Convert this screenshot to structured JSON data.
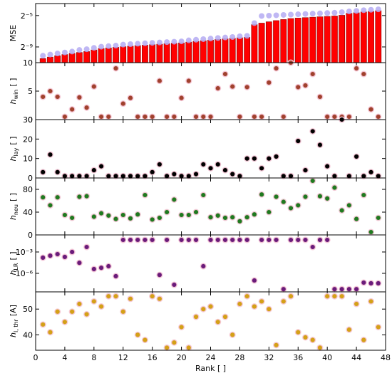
{
  "chart_data": [
    {
      "type": "bar",
      "ylabel": "MSE",
      "log_y": true,
      "x": [
        1,
        2,
        3,
        4,
        5,
        6,
        7,
        8,
        9,
        10,
        11,
        12,
        13,
        14,
        15,
        16,
        17,
        18,
        19,
        20,
        21,
        22,
        23,
        24,
        25,
        26,
        27,
        28,
        29,
        30,
        31,
        32,
        33,
        34,
        35,
        36,
        37,
        38,
        39,
        40,
        41,
        42,
        43,
        44,
        45,
        46,
        47
      ],
      "xlim": [
        0,
        48
      ],
      "xticks": [
        0,
        4,
        8,
        12,
        16,
        20,
        24,
        28,
        32,
        36,
        40,
        44,
        48
      ],
      "ylim": [
        0.00048828125,
        0.09
      ],
      "yticks": [
        {
          "value": 0.001953125,
          "label": "2⁻⁹"
        },
        {
          "value": 0.03125,
          "label": "2⁻⁵"
        }
      ],
      "series": [
        {
          "color": "#ff0000",
          "values": [
            0.0007,
            0.0008,
            0.0009,
            0.001,
            0.0011,
            0.0012,
            0.0013,
            0.0015,
            0.0017,
            0.0018,
            0.0019,
            0.002,
            0.0021,
            0.0022,
            0.0023,
            0.0024,
            0.0025,
            0.0026,
            0.0027,
            0.0028,
            0.003,
            0.0032,
            0.0034,
            0.0036,
            0.0038,
            0.004,
            0.0042,
            0.0044,
            0.0046,
            0.014,
            0.016,
            0.018,
            0.02,
            0.022,
            0.024,
            0.025,
            0.026,
            0.027,
            0.028,
            0.029,
            0.03,
            0.032,
            0.038,
            0.04,
            0.043,
            0.045,
            0.048
          ]
        },
        {
          "color": "#b4aaf2",
          "marker": "circle",
          "values": [
            0.0009,
            0.001,
            0.0011,
            0.0012,
            0.0013,
            0.0015,
            0.0016,
            0.0018,
            0.002,
            0.0021,
            0.0022,
            0.0024,
            0.0025,
            0.0026,
            0.0027,
            0.0028,
            0.0029,
            0.003,
            0.0031,
            0.0032,
            0.0035,
            0.0037,
            0.0039,
            0.0041,
            0.0043,
            0.0045,
            0.0047,
            0.005,
            0.0052,
            0.016,
            0.03,
            0.031,
            0.032,
            0.033,
            0.034,
            0.035,
            0.036,
            0.037,
            0.038,
            0.039,
            0.04,
            0.042,
            0.045,
            0.047,
            0.05,
            0.052,
            0.054
          ]
        }
      ]
    },
    {
      "type": "scatter",
      "ylabel": "h",
      "ylabel_sub": "win",
      "ylabel_unit": "[ ]",
      "color": "#a0412d",
      "x": [
        1,
        2,
        3,
        4,
        5,
        6,
        7,
        8,
        9,
        10,
        11,
        12,
        13,
        14,
        15,
        16,
        17,
        18,
        19,
        20,
        21,
        22,
        23,
        24,
        25,
        26,
        27,
        28,
        29,
        30,
        31,
        32,
        33,
        34,
        35,
        36,
        37,
        38,
        39,
        40,
        41,
        42,
        43,
        44,
        45,
        46,
        47
      ],
      "xlim": [
        0,
        48
      ],
      "xticks": [
        0,
        4,
        8,
        12,
        16,
        20,
        24,
        28,
        32,
        36,
        40,
        44,
        48
      ],
      "ylim": [
        0,
        10
      ],
      "yticks": [
        0,
        5,
        10
      ],
      "values": [
        4,
        5,
        4,
        0.5,
        1.8,
        3.9,
        2.1,
        5.8,
        0.5,
        0.5,
        9,
        2.8,
        3.8,
        0.5,
        0.5,
        0.5,
        6.8,
        0.5,
        0.5,
        3.8,
        6.8,
        0.5,
        0.5,
        0.5,
        5.5,
        8,
        5.8,
        0.5,
        5.7,
        0.5,
        0.5,
        6.5,
        9,
        0.5,
        10,
        5.7,
        6,
        8,
        4,
        0.5,
        0.5,
        0.5,
        0.5,
        9,
        8,
        1.8,
        0.5
      ]
    },
    {
      "type": "scatter",
      "ylabel": "h",
      "ylabel_sub": "lay",
      "ylabel_unit": "[ ]",
      "color": "#000000",
      "x": [
        1,
        2,
        3,
        4,
        5,
        6,
        7,
        8,
        9,
        10,
        11,
        12,
        13,
        14,
        15,
        16,
        17,
        18,
        19,
        20,
        21,
        22,
        23,
        24,
        25,
        26,
        27,
        28,
        29,
        30,
        31,
        32,
        33,
        34,
        35,
        36,
        37,
        38,
        39,
        40,
        41,
        42,
        43,
        44,
        45,
        46,
        47
      ],
      "xlim": [
        0,
        48
      ],
      "xticks": [
        0,
        4,
        8,
        12,
        16,
        20,
        24,
        28,
        32,
        36,
        40,
        44,
        48
      ],
      "ylim": [
        0,
        30
      ],
      "yticks": [
        0,
        10,
        20,
        30
      ],
      "values": [
        3,
        12,
        3,
        1,
        1,
        1,
        1,
        4,
        6,
        1,
        1,
        1,
        1,
        1,
        1,
        3,
        7,
        1,
        2,
        1,
        1,
        2,
        7,
        5,
        7,
        4,
        2,
        1,
        10,
        10,
        5,
        10,
        11,
        1,
        1,
        19,
        4,
        24,
        17,
        6,
        1,
        30,
        1,
        11,
        1,
        3,
        1
      ]
    },
    {
      "type": "scatter",
      "ylabel": "h",
      "ylabel_sub": "neu",
      "ylabel_unit": "[ ]",
      "color": "#1f7a1f",
      "x": [
        1,
        2,
        3,
        4,
        5,
        6,
        7,
        8,
        9,
        10,
        11,
        12,
        13,
        14,
        15,
        16,
        17,
        18,
        19,
        20,
        21,
        22,
        23,
        24,
        25,
        26,
        27,
        28,
        29,
        30,
        31,
        32,
        33,
        34,
        35,
        36,
        37,
        38,
        39,
        40,
        41,
        42,
        43,
        44,
        45,
        46,
        47
      ],
      "xlim": [
        0,
        48
      ],
      "xticks": [
        0,
        4,
        8,
        12,
        16,
        20,
        24,
        28,
        32,
        36,
        40,
        44,
        48
      ],
      "ylim": [
        0,
        100
      ],
      "yticks": [
        0,
        40,
        80
      ],
      "values": [
        66,
        52,
        66,
        35,
        30,
        67,
        68,
        32,
        38,
        34,
        28,
        35,
        29,
        36,
        70,
        27,
        30,
        40,
        62,
        35,
        35,
        40,
        70,
        31,
        34,
        30,
        31,
        24,
        31,
        36,
        71,
        40,
        67,
        58,
        47,
        52,
        67,
        95,
        68,
        64,
        83,
        43,
        52,
        28,
        70,
        5,
        30
      ]
    },
    {
      "type": "scatter",
      "ylabel": "h",
      "ylabel_sub": "LR",
      "ylabel_unit": "[ ]",
      "color": "#6a1b7a",
      "log_y": true,
      "x": [
        1,
        2,
        3,
        4,
        5,
        6,
        7,
        8,
        9,
        10,
        11,
        12,
        13,
        14,
        15,
        16,
        17,
        18,
        19,
        20,
        21,
        22,
        23,
        24,
        25,
        26,
        27,
        28,
        29,
        30,
        31,
        32,
        33,
        34,
        35,
        36,
        37,
        38,
        39,
        40,
        41,
        42,
        43,
        44,
        45,
        46,
        47
      ],
      "xlim": [
        0,
        48
      ],
      "xticks": [
        0,
        4,
        8,
        12,
        16,
        20,
        24,
        28,
        32,
        36,
        40,
        44,
        48
      ],
      "ylim": [
        2.5e-09,
        0.25
      ],
      "yticks": [
        {
          "value": 1e-06,
          "label": "10⁻⁶"
        },
        {
          "value": 0.001,
          "label": "10⁻³"
        }
      ],
      "values": [
        0.00016,
        0.0003,
        0.0005,
        0.0002,
        0.001,
        3e-05,
        0.005,
        4e-06,
        6e-06,
        1e-05,
        4e-07,
        0.05,
        0.05,
        0.05,
        0.05,
        0.05,
        6e-07,
        0.05,
        2.5e-08,
        0.05,
        0.05,
        0.05,
        1e-05,
        0.05,
        0.05,
        0.05,
        0.05,
        0.05,
        0.05,
        1e-07,
        0.05,
        0.05,
        0.05,
        6e-09,
        0.05,
        0.05,
        0.05,
        0.005,
        0.05,
        0.05,
        6e-09,
        6e-09,
        6e-09,
        6e-09,
        5e-08,
        4e-08,
        4e-08
      ]
    },
    {
      "type": "scatter",
      "ylabel": "h",
      "ylabel_sub": "l, thr",
      "ylabel_unit": "[A]",
      "color": "#d4a017",
      "xlabel": "Rank [ ]",
      "x": [
        1,
        2,
        3,
        4,
        5,
        6,
        7,
        8,
        9,
        10,
        11,
        12,
        13,
        14,
        15,
        16,
        17,
        18,
        19,
        20,
        21,
        22,
        23,
        24,
        25,
        26,
        27,
        28,
        29,
        30,
        31,
        32,
        33,
        34,
        35,
        36,
        37,
        38,
        39,
        40,
        41,
        42,
        43,
        44,
        45,
        46,
        47
      ],
      "xlim": [
        0,
        48
      ],
      "xticks": [
        0,
        4,
        8,
        12,
        16,
        20,
        24,
        28,
        32,
        36,
        40,
        44,
        48
      ],
      "ylim": [
        34,
        56.7
      ],
      "yticks": [
        40,
        50
      ],
      "values": [
        44,
        41,
        49,
        45,
        49,
        52,
        48,
        53,
        51,
        55,
        55,
        49,
        54,
        40,
        38,
        55,
        54,
        35,
        37,
        43,
        35,
        47,
        50,
        51,
        45,
        47,
        40,
        52,
        55,
        51,
        53,
        50,
        36,
        53,
        55,
        41,
        39,
        38,
        35,
        55,
        55,
        55,
        42,
        52,
        38,
        53,
        43
      ]
    }
  ]
}
